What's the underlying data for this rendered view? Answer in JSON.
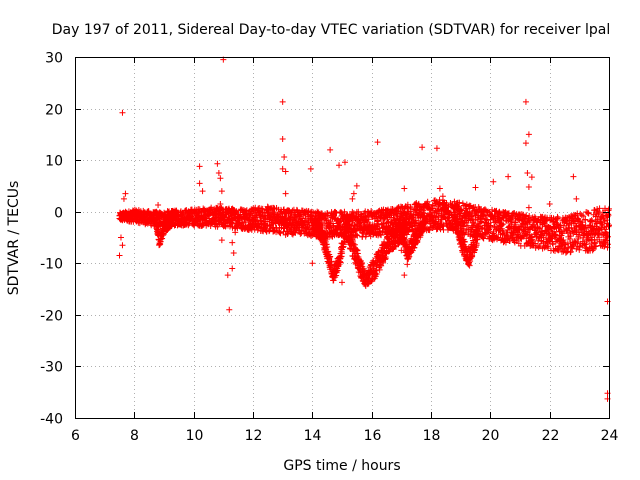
{
  "chart_data": {
    "type": "scatter",
    "title": "Day 197 of 2011, Sidereal Day-to-day VTEC variation (SDTVAR) for receiver lpal",
    "xlabel": "GPS time / hours",
    "ylabel": "SDTVAR / TECUs",
    "xlim": [
      6,
      24
    ],
    "ylim": [
      -40,
      30
    ],
    "xticks": [
      6,
      8,
      10,
      12,
      14,
      16,
      18,
      20,
      22,
      24
    ],
    "yticks": [
      -40,
      -30,
      -20,
      -10,
      0,
      10,
      20,
      30
    ],
    "x_tick_labels": [
      "6",
      "8",
      "10",
      "12",
      "14",
      "16",
      "18",
      "20",
      "22",
      "24"
    ],
    "y_tick_labels": [
      "-40",
      "-30",
      "-20",
      "-10",
      "0",
      "10",
      "20",
      "30"
    ],
    "grid": true,
    "marker": "+",
    "color": "#ff0000",
    "bands": [
      {
        "name": "main-band",
        "points": [
          [
            7.5,
            -1,
            0.8
          ],
          [
            8.0,
            -0.8,
            1.2
          ],
          [
            8.8,
            -1.5,
            1.5
          ],
          [
            9.5,
            -1.2,
            1.5
          ],
          [
            10.5,
            -1.0,
            1.8
          ],
          [
            11.5,
            -1.3,
            2.0
          ],
          [
            12.5,
            -1.5,
            2.5
          ],
          [
            13.5,
            -2.0,
            2.5
          ],
          [
            14.5,
            -2.5,
            2.5
          ],
          [
            15.5,
            -2.5,
            2.5
          ],
          [
            16.5,
            -2.0,
            2.5
          ],
          [
            17.5,
            -1.0,
            2.8
          ],
          [
            18.5,
            -0.5,
            3.0
          ],
          [
            19.5,
            -2.0,
            3.0
          ],
          [
            20.5,
            -3.0,
            3.0
          ],
          [
            21.5,
            -4.0,
            3.2
          ],
          [
            22.5,
            -4.5,
            3.5
          ],
          [
            23.5,
            -3.5,
            4.0
          ],
          [
            24.0,
            -3.0,
            4.0
          ]
        ]
      },
      {
        "name": "dip-8.8",
        "points": [
          [
            8.7,
            -1.5,
            1
          ],
          [
            8.85,
            -6,
            1
          ],
          [
            9.0,
            -3,
            1.2
          ],
          [
            9.3,
            -1.5,
            1
          ]
        ]
      },
      {
        "name": "dip-14.6",
        "points": [
          [
            14.1,
            -2,
            1
          ],
          [
            14.4,
            -6,
            1.5
          ],
          [
            14.7,
            -12,
            1.5
          ],
          [
            14.9,
            -10,
            1.5
          ],
          [
            15.1,
            -4,
            1.5
          ]
        ]
      },
      {
        "name": "dip-15.7",
        "points": [
          [
            15.1,
            -3,
            1.5
          ],
          [
            15.5,
            -9,
            2
          ],
          [
            15.8,
            -13.5,
            1.5
          ],
          [
            16.1,
            -11,
            2
          ],
          [
            16.6,
            -6,
            2
          ],
          [
            17.2,
            -3,
            2
          ]
        ]
      },
      {
        "name": "dip-17.2",
        "points": [
          [
            16.9,
            -2,
            1
          ],
          [
            17.2,
            -8,
            1.5
          ],
          [
            17.5,
            -5,
            1.5
          ],
          [
            17.8,
            -2,
            1
          ]
        ]
      },
      {
        "name": "dip-19.1",
        "points": [
          [
            18.8,
            -1,
            1.5
          ],
          [
            19.1,
            -7,
            2
          ],
          [
            19.3,
            -9,
            1.5
          ],
          [
            19.6,
            -4,
            1.5
          ]
        ]
      }
    ],
    "outliers": [
      [
        7.6,
        19.2
      ],
      [
        7.5,
        -8.5
      ],
      [
        7.6,
        -6.5
      ],
      [
        7.55,
        -5
      ],
      [
        7.7,
        3.5
      ],
      [
        7.65,
        2.5
      ],
      [
        8.8,
        1.3
      ],
      [
        10.2,
        8.8
      ],
      [
        10.3,
        4
      ],
      [
        10.2,
        5.5
      ],
      [
        10.8,
        9.3
      ],
      [
        10.85,
        7.5
      ],
      [
        10.9,
        6.5
      ],
      [
        10.95,
        4
      ],
      [
        10.9,
        1.5
      ],
      [
        10.95,
        -5.5
      ],
      [
        11.0,
        29.5
      ],
      [
        11.15,
        -12.3
      ],
      [
        11.2,
        -19
      ],
      [
        11.3,
        -11
      ],
      [
        11.35,
        -8
      ],
      [
        11.3,
        -6
      ],
      [
        11.4,
        -4
      ],
      [
        13.0,
        21.3
      ],
      [
        13.0,
        14.1
      ],
      [
        13.05,
        10.6
      ],
      [
        13.0,
        8.3
      ],
      [
        13.1,
        7.8
      ],
      [
        13.1,
        3.5
      ],
      [
        13.1,
        -4.5
      ],
      [
        13.95,
        8.3
      ],
      [
        14.0,
        -10
      ],
      [
        14.6,
        12
      ],
      [
        14.9,
        9
      ],
      [
        15.1,
        9.6
      ],
      [
        15.0,
        -13.7
      ],
      [
        15.4,
        3.5
      ],
      [
        15.5,
        5
      ],
      [
        15.35,
        2.5
      ],
      [
        16.2,
        13.5
      ],
      [
        16.0,
        -3
      ],
      [
        17.1,
        4.5
      ],
      [
        17.0,
        -7.5
      ],
      [
        17.2,
        -10.2
      ],
      [
        17.1,
        -12.3
      ],
      [
        17.7,
        12.5
      ],
      [
        18.2,
        12.3
      ],
      [
        18.3,
        4.5
      ],
      [
        18.4,
        3
      ],
      [
        19.5,
        4.7
      ],
      [
        20.1,
        5.8
      ],
      [
        20.6,
        6.8
      ],
      [
        21.2,
        21.3
      ],
      [
        21.2,
        13.3
      ],
      [
        21.3,
        15
      ],
      [
        21.25,
        7.5
      ],
      [
        21.3,
        4.8
      ],
      [
        21.4,
        6.7
      ],
      [
        21.3,
        0.8
      ],
      [
        21.5,
        -1
      ],
      [
        22.0,
        1.5
      ],
      [
        22.8,
        6.8
      ],
      [
        22.9,
        2.5
      ],
      [
        22.8,
        -1.8
      ],
      [
        23.4,
        -5.5
      ],
      [
        23.5,
        -6
      ],
      [
        23.95,
        -17.4
      ],
      [
        23.95,
        -35.2
      ],
      [
        23.95,
        -36.3
      ]
    ]
  }
}
